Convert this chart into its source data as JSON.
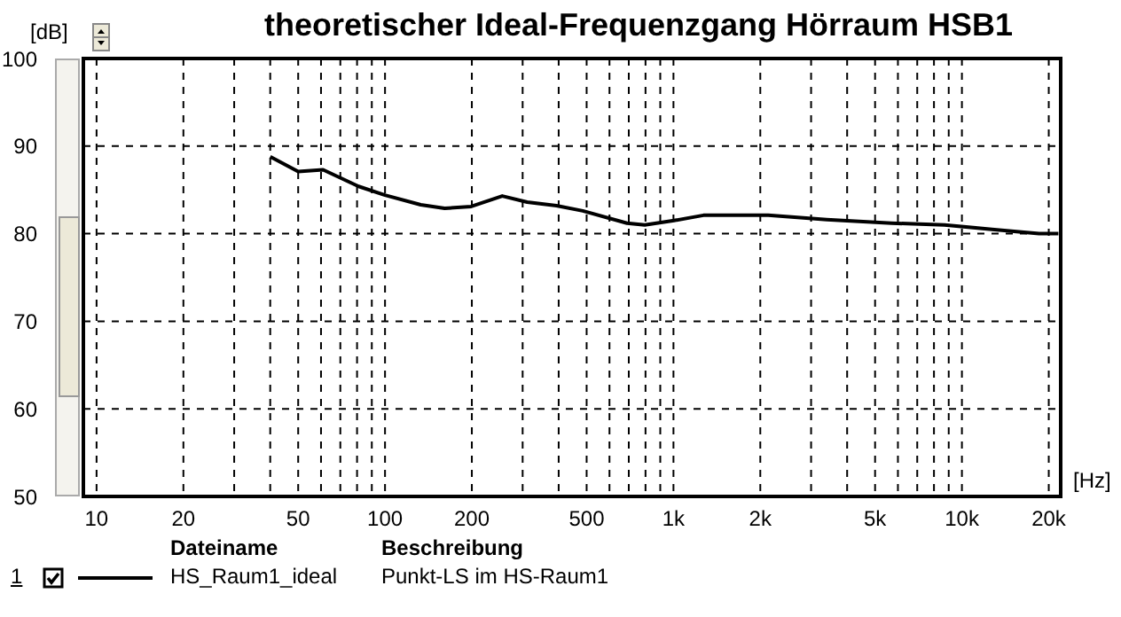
{
  "chart_data": {
    "type": "line",
    "title": "theoretischer Ideal-Frequenzgang Hörraum HSB1",
    "xlabel": "[Hz]",
    "ylabel": "[dB]",
    "log": "x",
    "grid": true,
    "legend": "bottom left",
    "marker": "none",
    "line_style": "solid",
    "xlim": [
      9,
      22000
    ],
    "ylim": [
      50,
      100
    ],
    "xticks": [
      10,
      20,
      {
        "value": 30,
        "label": null
      },
      {
        "value": 40,
        "label": null
      },
      50,
      {
        "value": 60,
        "label": null
      },
      {
        "value": 70,
        "label": null
      },
      {
        "value": 80,
        "label": null
      },
      {
        "value": 90,
        "label": null
      },
      100,
      200,
      {
        "value": 300,
        "label": null
      },
      {
        "value": 400,
        "label": null
      },
      500,
      {
        "value": 600,
        "label": null
      },
      {
        "value": 700,
        "label": null
      },
      {
        "value": 800,
        "label": null
      },
      {
        "value": 900,
        "label": null
      },
      {
        "value": 1000,
        "label": "1k"
      },
      {
        "value": 2000,
        "label": "2k"
      },
      {
        "value": 3000,
        "label": null
      },
      {
        "value": 4000,
        "label": null
      },
      {
        "value": 5000,
        "label": "5k"
      },
      {
        "value": 6000,
        "label": null
      },
      {
        "value": 7000,
        "label": null
      },
      {
        "value": 8000,
        "label": null
      },
      {
        "value": 9000,
        "label": null
      },
      {
        "value": 10000,
        "label": "10k"
      },
      {
        "value": 20000,
        "label": "20k"
      }
    ],
    "yticks": [
      50,
      60,
      70,
      80,
      90,
      100
    ],
    "annotations": [
      "1",
      "Dateiname",
      "Beschreibung",
      "Punkt-LS im HS-Raum1"
    ],
    "series": [
      {
        "name": "HS_Raum1_ideal",
        "color": "#000000",
        "x": [
          40,
          50,
          61,
          81,
          100,
          133,
          161,
          199,
          255,
          311,
          393,
          485,
          690,
          795,
          1005,
          1270,
          2130,
          3400,
          5700,
          8700,
          12700,
          18500,
          21600
        ],
        "values": [
          88.8,
          87.1,
          87.3,
          85.4,
          84.4,
          83.3,
          82.9,
          83.1,
          84.3,
          83.6,
          83.2,
          82.6,
          81.2,
          81.0,
          81.5,
          82.1,
          82.1,
          81.6,
          81.2,
          81.0,
          80.5,
          80.0,
          80.0
        ]
      }
    ]
  }
}
